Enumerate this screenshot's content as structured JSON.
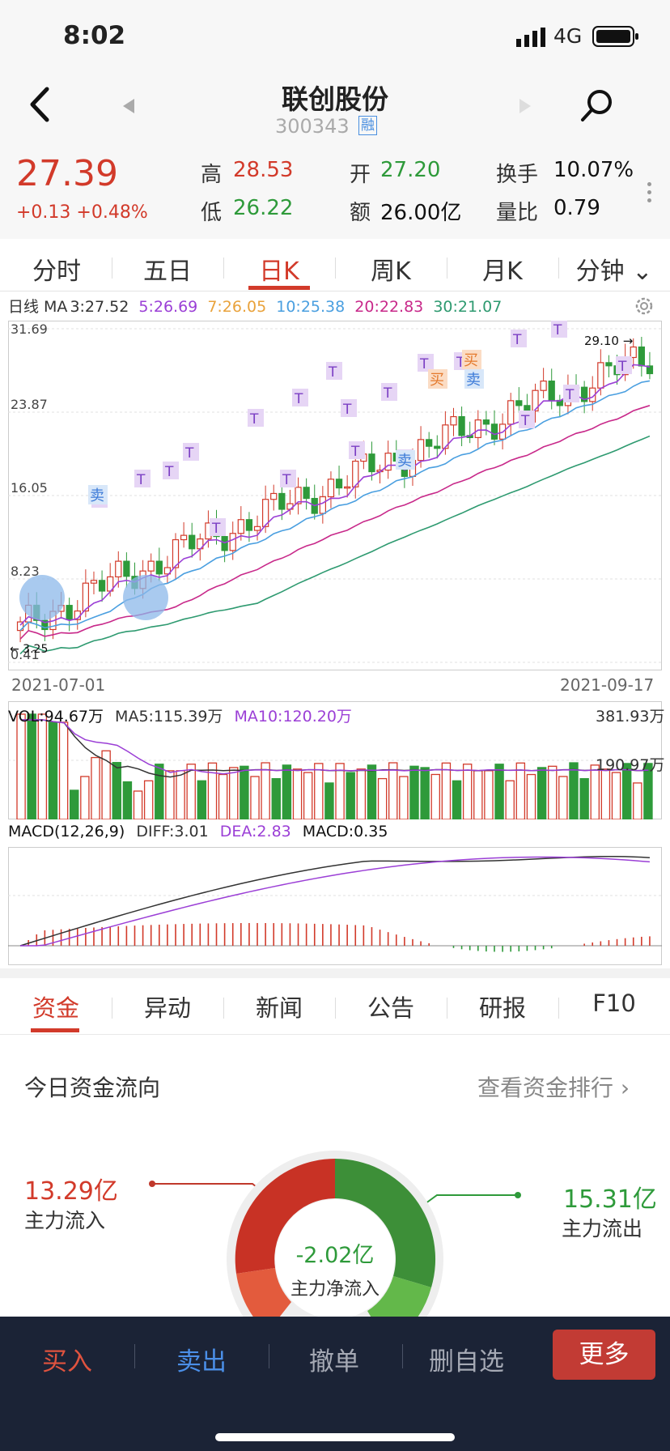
{
  "status": {
    "time": "8:02",
    "network": "4G"
  },
  "header": {
    "name": "联创股份",
    "code": "300343",
    "rong": "融"
  },
  "quote": {
    "price": "27.39",
    "change": "+0.13 +0.48%",
    "high_label": "高",
    "high": "28.53",
    "low_label": "低",
    "low": "26.22",
    "open_label": "开",
    "open": "27.20",
    "amount_label": "额",
    "amount": "26.00亿",
    "turnover_label": "换手",
    "turnover": "10.07%",
    "ratio_label": "量比",
    "ratio": "0.79"
  },
  "chart_tabs": [
    "分时",
    "五日",
    "日K",
    "周K",
    "月K",
    "分钟"
  ],
  "chart_tab_active": 2,
  "ma": {
    "prefix": "日线 MA",
    "ma3": "3:27.52",
    "ma5": "5:26.69",
    "ma7": "7:26.05",
    "ma10": "10:25.38",
    "ma20": "20:22.83",
    "ma30": "30:21.07"
  },
  "colors": {
    "ma5": "#9b3fd6",
    "ma7": "#e9a23b",
    "ma10": "#4a9fe0",
    "ma20": "#c8298a",
    "ma30": "#2e9a70",
    "up": "#d23a2a",
    "down": "#2e9a3a"
  },
  "chart_data": [
    {
      "type": "candlestick",
      "y_ticks": [
        "31.69",
        "23.87",
        "16.05",
        "8.23",
        "0.41"
      ],
      "ylim": [
        0.41,
        31.69
      ],
      "x_start": "2021-07-01",
      "x_end": "2021-09-17",
      "max_label": "29.10",
      "min_label": "3.25",
      "markers": {
        "T": "T",
        "buy": "买",
        "sell": "卖"
      }
    },
    {
      "type": "bar",
      "label": "VOL:94.67万",
      "ma5": "MA5:115.39万",
      "ma10": "MA10:120.20万",
      "max_label": "381.93万",
      "mid_label": "190.97万"
    },
    {
      "type": "bar",
      "label": "MACD(12,26,9)",
      "diff": "DIFF:3.01",
      "dea": "DEA:2.83",
      "macd": "MACD:0.35"
    }
  ],
  "info_tabs": [
    "资金",
    "异动",
    "新闻",
    "公告",
    "研报",
    "F10"
  ],
  "flow": {
    "title": "今日资金流向",
    "link": "查看资金排行 ›",
    "in_value": "13.29亿",
    "in_label": "主力流入",
    "out_value": "15.31亿",
    "out_label": "主力流出",
    "net_value": "-2.02亿",
    "net_label": "主力净流入"
  },
  "bottom": {
    "buy": "买入",
    "sell": "卖出",
    "cancel": "撤单",
    "remove": "删自选",
    "more": "更多"
  }
}
